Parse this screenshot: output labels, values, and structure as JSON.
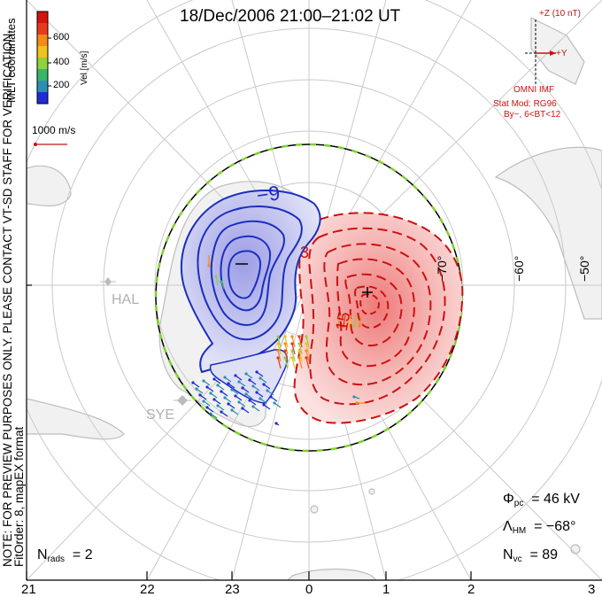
{
  "title": "18/Dec/2006 21:00–21:02 UT",
  "colorbar": {
    "label": "Vel [m/s]",
    "ticks": [
      "600",
      "400",
      "200"
    ],
    "colors": [
      "#1f2cd6",
      "#2d8fb0",
      "#3ab56a",
      "#8fd23e",
      "#f0c21c",
      "#f58a1a",
      "#e83b1a",
      "#d8120f"
    ]
  },
  "coords_label": "MLT coordinates",
  "ref_vector": "1000 m/s",
  "preview_note": [
    "NOTE: FOR PREVIEW PURPOSES ONLY. PLEASE CONTACT VT-SD STAFF FOR VERIFICATION.",
    "FitOrder: 8, mapEX format"
  ],
  "imf": {
    "z_label": "+Z (10 nT)",
    "y_label": "+Y",
    "source": "OMNI IMF",
    "model": "Stat Mod: RG96",
    "condition": "By−, 6<BT<12",
    "color": "#cc1111"
  },
  "stations": [
    "HAL",
    "SYE"
  ],
  "lat_labels": [
    "−70°",
    "−60°",
    "−50°"
  ],
  "contours": {
    "negative_label": "−9",
    "positive_label_small": "3",
    "positive_label_mid": "15",
    "negative_color": "#1a2fbf",
    "positive_color": "#cc1111"
  },
  "mlt_ticks": [
    "21",
    "22",
    "23",
    "0",
    "1",
    "2",
    "3"
  ],
  "stats": {
    "phi_pc": {
      "symbol": "Φ",
      "sub": "pc",
      "value": "= 46 kV"
    },
    "lambda_hm": {
      "symbol": "Λ",
      "sub": "HM",
      "value": "= −68°"
    },
    "n_vc": {
      "symbol": "N",
      "sub": "vc",
      "value": "= 89"
    },
    "n_rads": {
      "symbol": "N",
      "sub": "rads",
      "value": "= 2"
    }
  }
}
